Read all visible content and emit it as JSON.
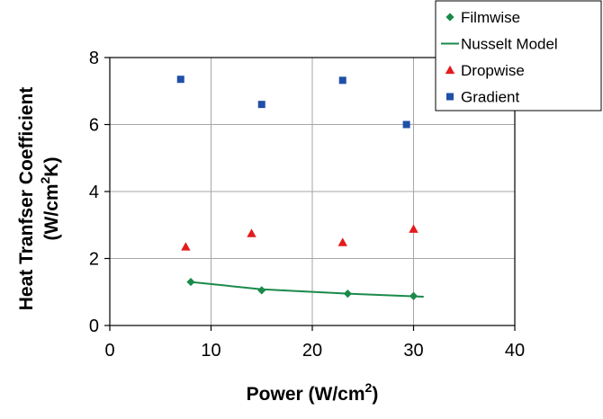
{
  "chart_data": {
    "type": "scatter",
    "xlabel": {
      "main": "Power (W/cm",
      "sup": "2",
      "tail": ")"
    },
    "ylabel": {
      "line1": "Heat Tranfser Coefficient",
      "line2_main": "(W/cm",
      "line2_sup": "2",
      "line2_tail": "K)"
    },
    "xlim": [
      0,
      40
    ],
    "ylim": [
      0,
      8
    ],
    "xticks": [
      0,
      10,
      20,
      30,
      40
    ],
    "yticks": [
      0,
      2,
      4,
      6,
      8
    ],
    "grid": true,
    "legend_position": "top-right",
    "series": [
      {
        "name": "Filmwise",
        "kind": "marker",
        "marker": "diamond",
        "color": "#1a8a4a",
        "points": [
          {
            "x": 8,
            "y": 1.3
          },
          {
            "x": 15,
            "y": 1.05
          },
          {
            "x": 23.5,
            "y": 0.95
          },
          {
            "x": 30,
            "y": 0.88
          }
        ]
      },
      {
        "name": "Nusselt Model",
        "kind": "line",
        "color": "#1a8a4a",
        "points": [
          {
            "x": 8,
            "y": 1.3
          },
          {
            "x": 15,
            "y": 1.08
          },
          {
            "x": 23.5,
            "y": 0.95
          },
          {
            "x": 31,
            "y": 0.86
          }
        ]
      },
      {
        "name": "Dropwise",
        "kind": "marker",
        "marker": "triangle",
        "color": "#e41a1c",
        "points": [
          {
            "x": 7.5,
            "y": 2.35
          },
          {
            "x": 14,
            "y": 2.75
          },
          {
            "x": 23,
            "y": 2.48
          },
          {
            "x": 30,
            "y": 2.88
          }
        ]
      },
      {
        "name": "Gradient",
        "kind": "marker",
        "marker": "square",
        "color": "#1f4fa8",
        "points": [
          {
            "x": 7,
            "y": 7.35
          },
          {
            "x": 15,
            "y": 6.6
          },
          {
            "x": 23,
            "y": 7.32
          },
          {
            "x": 29.3,
            "y": 6.0
          }
        ]
      }
    ]
  }
}
